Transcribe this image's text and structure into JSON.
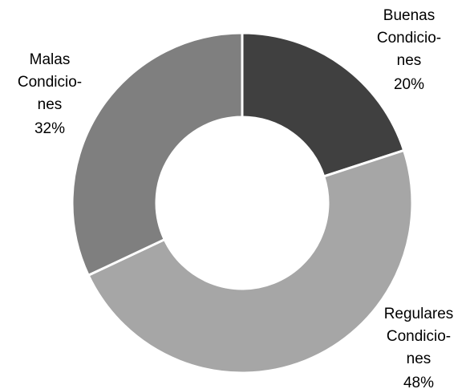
{
  "chart_data": {
    "type": "donut",
    "categories": [
      [
        "Buenas",
        "Condicio-",
        "nes"
      ],
      [
        "Regulares",
        "Condicio-",
        "nes"
      ],
      [
        "Malas",
        "Condicio-",
        "nes"
      ]
    ],
    "values": [
      20,
      48,
      32
    ],
    "value_labels": [
      "20%",
      "48%",
      "32%"
    ],
    "colors": [
      "#404040",
      "#a6a6a6",
      "#7f7f7f"
    ]
  }
}
